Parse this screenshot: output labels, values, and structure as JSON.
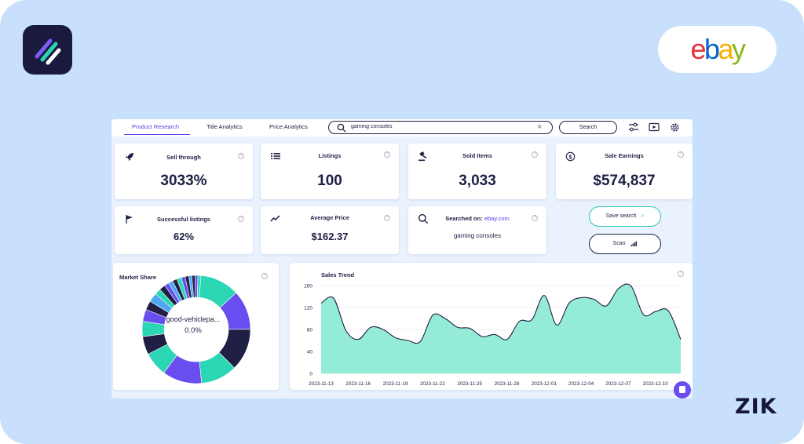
{
  "colors": {
    "accent": "#5a3ee6",
    "teal": "#2bd6b4",
    "navy": "#1f1f44",
    "purple": "#6a4df0",
    "blue": "#4ea6f5",
    "background": "#c8e0fb"
  },
  "branding": {
    "app_logo": "zik-analytics-logo-icon",
    "marketplace_logo": {
      "e": "e",
      "b": "b",
      "a": "a",
      "y": "y"
    },
    "footer_mark": "ZIK"
  },
  "tabs": [
    {
      "label": "Product Research",
      "active": true
    },
    {
      "label": "Title Analytics",
      "active": false
    },
    {
      "label": "Price Analytics",
      "active": false
    }
  ],
  "search": {
    "value": "gaming consoles",
    "button_label": "Search",
    "icons": [
      "filter-sliders-icon",
      "video-play-icon",
      "settings-gear-icon"
    ]
  },
  "stats": {
    "sell_through": {
      "label": "Sell through",
      "value": "3033%",
      "icon": "rocket-icon"
    },
    "listings": {
      "label": "Listings",
      "value": "100",
      "icon": "list-icon"
    },
    "sold_items": {
      "label": "Sold Items",
      "value": "3,033",
      "icon": "gavel-icon"
    },
    "sale_earnings": {
      "label": "Sale Earnings",
      "value": "$574,837",
      "icon": "dollar-coin-icon"
    },
    "successful_listings": {
      "label": "Successful listings",
      "value": "62%",
      "icon": "flag-icon"
    },
    "average_price": {
      "label": "Average Price",
      "value": "$162.37",
      "icon": "trend-line-icon"
    },
    "searched_on": {
      "label": "Searched on:",
      "site": "ebay.com",
      "value": "gaming consoles",
      "icon": "search-icon"
    }
  },
  "actions": {
    "save_search": "Save search",
    "scan": "Scan"
  },
  "market_share": {
    "title": "Market Share",
    "center_label": "good-vehiclepa...",
    "center_value": "0.0%"
  },
  "chart_data": {
    "type": "area",
    "title": "Sales Trend",
    "xlabel": "",
    "ylabel": "",
    "ylim": [
      0,
      160
    ],
    "yticks": [
      0,
      40,
      80,
      120,
      160
    ],
    "x_tick_labels": [
      "2023-11-13",
      "2023-11-16",
      "2023-11-19",
      "2023-11-22",
      "2023-11-25",
      "2023-11-28",
      "2023-12-01",
      "2023-12-04",
      "2023-12-07",
      "2023-12-10"
    ],
    "grid": true,
    "series": [
      {
        "values": [
          128,
          137,
          78,
          62,
          84,
          80,
          65,
          60,
          58,
          106,
          100,
          84,
          82,
          67,
          71,
          62,
          95,
          98,
          142,
          88,
          128,
          138,
          135,
          123,
          155,
          159,
          107,
          113,
          114,
          62
        ]
      }
    ]
  },
  "pie": {
    "segments": [
      {
        "value": 13,
        "color": "#2bd6b4"
      },
      {
        "value": 13,
        "color": "#6a4df0"
      },
      {
        "value": 14,
        "color": "#1f1f44"
      },
      {
        "value": 12,
        "color": "#2bd6b4"
      },
      {
        "value": 13,
        "color": "#6a4df0"
      },
      {
        "value": 8,
        "color": "#2bd6b4"
      },
      {
        "value": 6,
        "color": "#1f1f44"
      },
      {
        "value": 5,
        "color": "#2bd6b4"
      },
      {
        "value": 4,
        "color": "#6a4df0"
      },
      {
        "value": 3,
        "color": "#1f1f44"
      },
      {
        "value": 3,
        "color": "#4ea6f5"
      },
      {
        "value": 2,
        "color": "#2bd6b4"
      },
      {
        "value": 2,
        "color": "#1f1f44"
      },
      {
        "value": 1.5,
        "color": "#6a4df0"
      },
      {
        "value": 1.5,
        "color": "#4ea6f5"
      },
      {
        "value": 1.5,
        "color": "#1f1f44"
      },
      {
        "value": 1.5,
        "color": "#2bd6b4"
      },
      {
        "value": 1.3,
        "color": "#6a4df0"
      },
      {
        "value": 1.2,
        "color": "#1f1f44"
      },
      {
        "value": 1.0,
        "color": "#4ea6f5"
      },
      {
        "value": 1.0,
        "color": "#1f1f44"
      },
      {
        "value": 1.0,
        "color": "#6a4df0"
      },
      {
        "value": 1.0,
        "color": "#2bd6b4"
      }
    ]
  }
}
